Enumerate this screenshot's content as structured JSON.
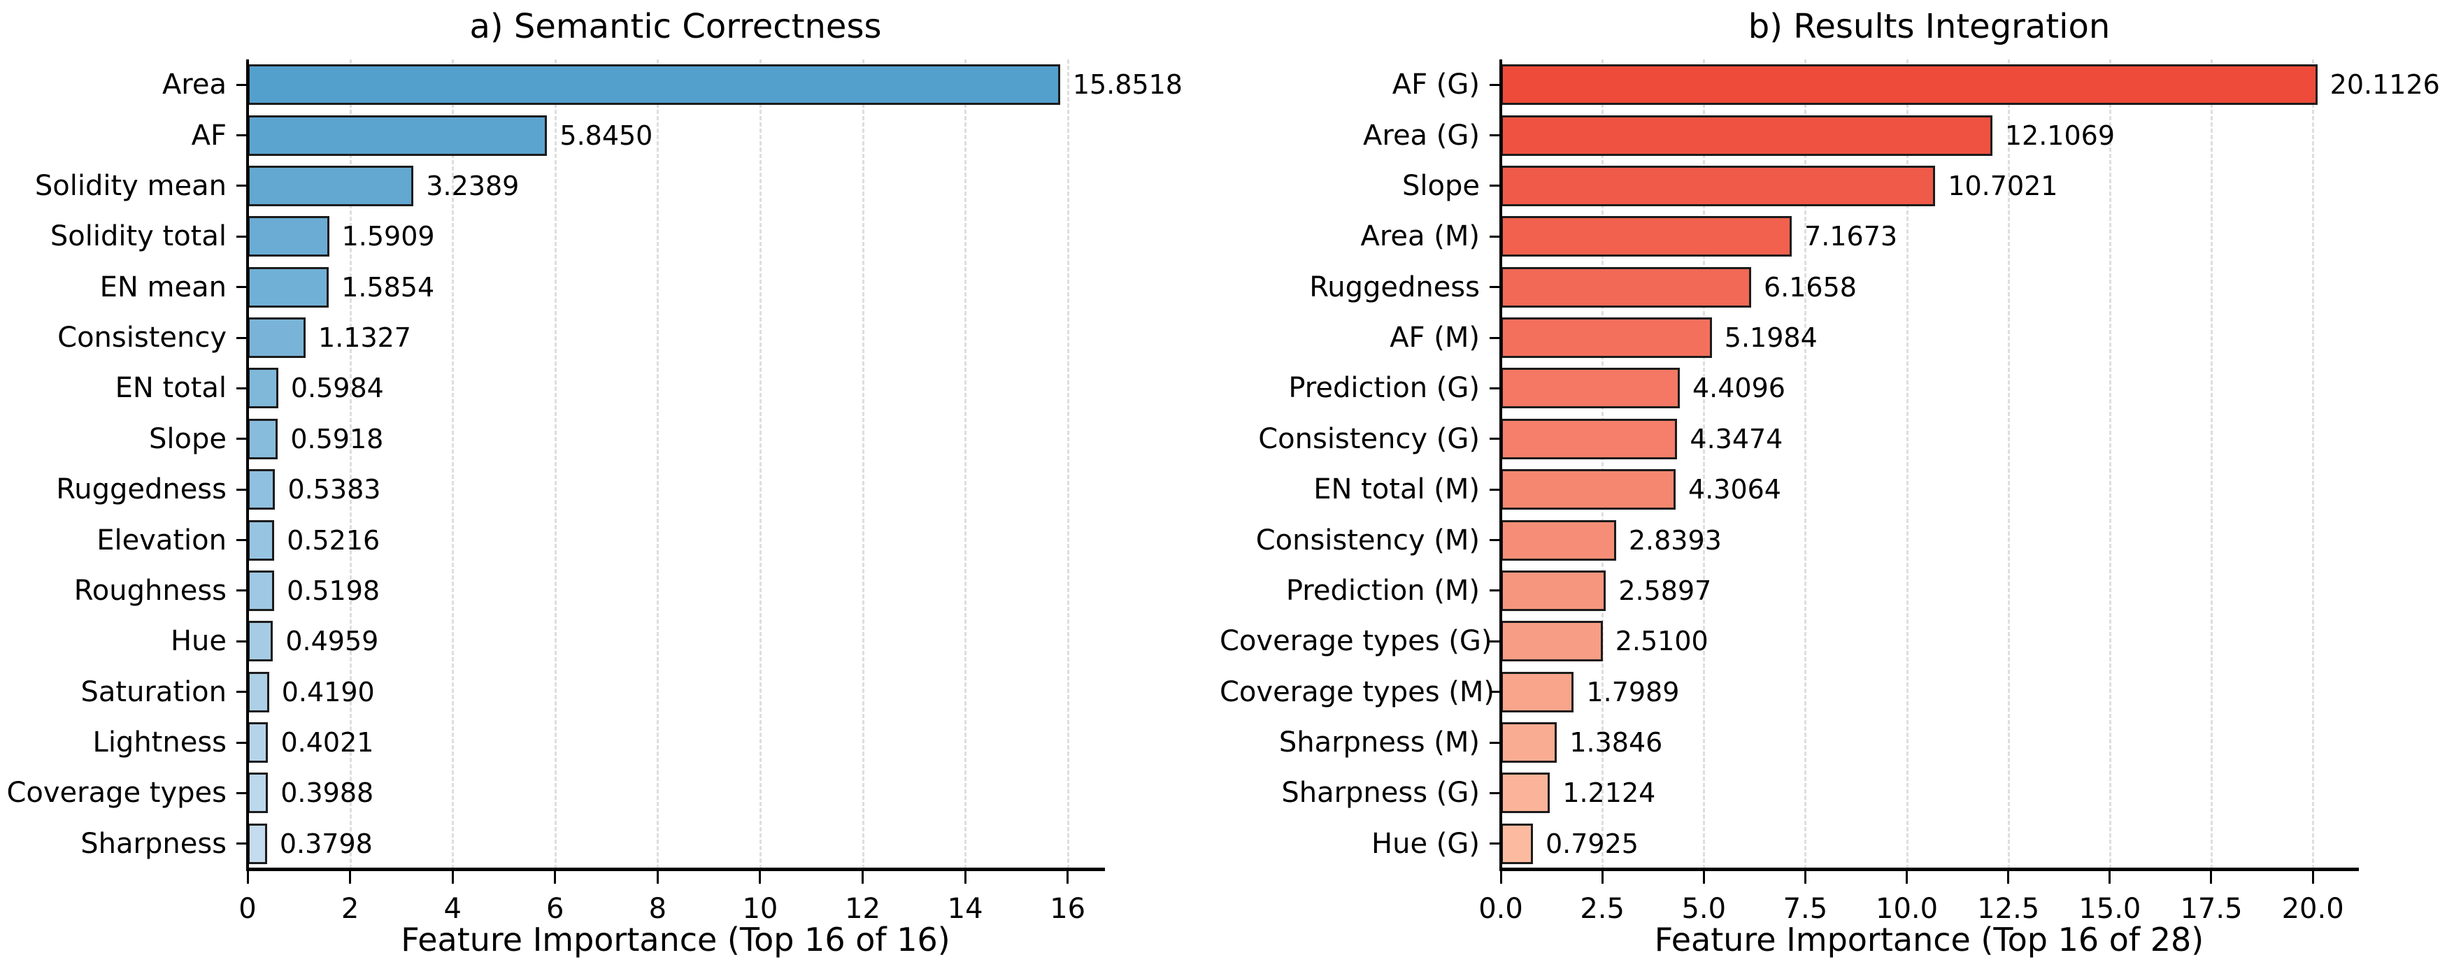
{
  "figure": {
    "background": "#ffffff",
    "text_color": "#000000",
    "grid_color": "#dedede",
    "axis_color": "#000000"
  },
  "chart_data": [
    {
      "type": "bar",
      "orientation": "horizontal",
      "title": "a) Semantic Correctness",
      "xlabel": "Feature Importance (Top 16 of 16)",
      "categories": [
        "Area",
        "AF",
        "Solidity mean",
        "Solidity total",
        "EN mean",
        "Consistency",
        "EN total",
        "Slope",
        "Ruggedness",
        "Elevation",
        "Roughness",
        "Hue",
        "Saturation",
        "Lightness",
        "Coverage types",
        "Sharpness"
      ],
      "values": [
        15.8518,
        5.845,
        3.2389,
        1.5909,
        1.5854,
        1.1327,
        0.5984,
        0.5918,
        0.5383,
        0.5216,
        0.5198,
        0.4959,
        0.419,
        0.4021,
        0.3988,
        0.3798
      ],
      "value_labels": [
        "15.8518",
        "5.8450",
        "3.2389",
        "1.5909",
        "1.5854",
        "1.1327",
        "0.5984",
        "0.5918",
        "0.5383",
        "0.5216",
        "0.5198",
        "0.4959",
        "0.4190",
        "0.4021",
        "0.3988",
        "0.3798"
      ],
      "xlim": [
        0,
        16.7
      ],
      "xticks": [
        0,
        2,
        4,
        6,
        8,
        10,
        12,
        14,
        16
      ],
      "xtick_labels": [
        "0",
        "2",
        "4",
        "6",
        "8",
        "10",
        "12",
        "14",
        "16"
      ],
      "grid": true,
      "legend": "none",
      "bar_color_start": "#53A0CD",
      "bar_color_end": "#C4DCEE",
      "bar_edge_color": "#1c1c1c"
    },
    {
      "type": "bar",
      "orientation": "horizontal",
      "title": "b) Results Integration",
      "xlabel": "Feature Importance (Top 16 of 28)",
      "categories": [
        "AF (G)",
        "Area (G)",
        "Slope",
        "Area (M)",
        "Ruggedness",
        "AF (M)",
        "Prediction (G)",
        "Consistency (G)",
        "EN total (M)",
        "Consistency (M)",
        "Prediction (M)",
        "Coverage types (G)",
        "Coverage types (M)",
        "Sharpness (M)",
        "Sharpness (G)",
        "Hue (G)"
      ],
      "values": [
        20.1126,
        12.1069,
        10.7021,
        7.1673,
        6.1658,
        5.1984,
        4.4096,
        4.3474,
        4.3064,
        2.8393,
        2.5897,
        2.51,
        1.7989,
        1.3846,
        1.2124,
        0.7925
      ],
      "value_labels": [
        "20.1126",
        "12.1069",
        "10.7021",
        "7.1673",
        "6.1658",
        "5.1984",
        "4.4096",
        "4.3474",
        "4.3064",
        "2.8393",
        "2.5897",
        "2.5100",
        "1.7989",
        "1.3846",
        "1.2124",
        "0.7925"
      ],
      "xlim": [
        0,
        21.1
      ],
      "xticks": [
        0,
        2.5,
        5,
        7.5,
        10,
        12.5,
        15,
        17.5,
        20
      ],
      "xtick_labels": [
        "0.0",
        "2.5",
        "5.0",
        "7.5",
        "10.0",
        "12.5",
        "15.0",
        "17.5",
        "20.0"
      ],
      "grid": true,
      "legend": "none",
      "bar_color_start": "#EE4B3A",
      "bar_color_end": "#FCBBA0",
      "bar_edge_color": "#1c1c1c"
    }
  ]
}
